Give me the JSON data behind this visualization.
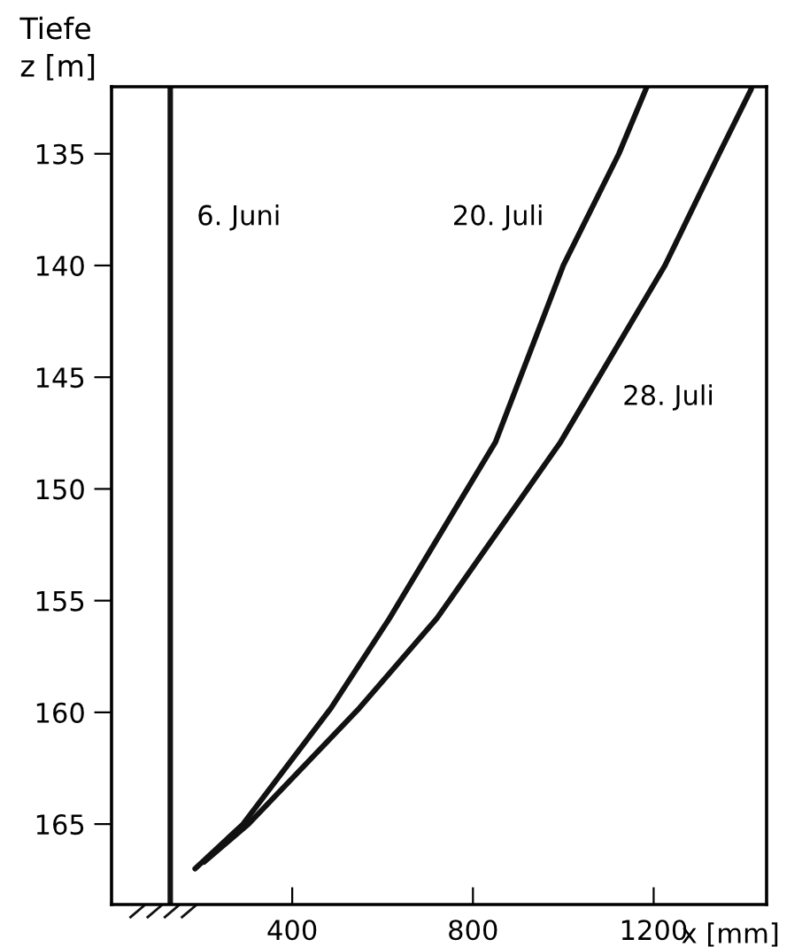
{
  "chart_data": {
    "type": "line",
    "xlabel": "x [mm]",
    "ylabel": "Tiefe\nz [m]",
    "xlim": [
      0,
      1450
    ],
    "ylim": [
      168.6,
      132
    ],
    "xticks": [
      400,
      800,
      1200
    ],
    "yticks": [
      135,
      140,
      145,
      150,
      155,
      160,
      165
    ],
    "grid": false,
    "marker": "none",
    "line_style": "solid",
    "series": [
      {
        "color": "#111111",
        "x": [
          130,
          130
        ],
        "values": [
          132,
          168.6
        ]
      },
      {
        "color": "#111111",
        "x": [
          1185,
          1123,
          1000,
          850,
          615,
          486,
          291,
          185
        ],
        "values": [
          132,
          135,
          140,
          147.9,
          155.8,
          159.8,
          165,
          167
        ]
      },
      {
        "color": "#111111",
        "x": [
          1416,
          1345,
          1225,
          994,
          720,
          549,
          303,
          205
        ],
        "values": [
          132.1,
          135,
          140,
          147.9,
          155.8,
          159.8,
          165,
          166.7
        ]
      }
    ],
    "annotations": [
      "6. Juni",
      "20. Juli",
      "28. Juli"
    ]
  }
}
